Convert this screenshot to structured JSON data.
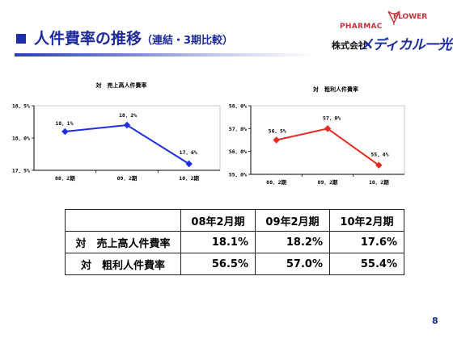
{
  "header": {
    "title_main": "人件費率の推移",
    "title_sub": "（連結・3期比較）"
  },
  "logo": {
    "pharmac": "PHARMAC",
    "flower": "FLOWER",
    "company_prefix": "株式会社",
    "brand": "メディカル一光"
  },
  "chart_data": [
    {
      "type": "line",
      "title": "対　売上高人件費率",
      "categories": [
        "08．2期",
        "09．2期",
        "10．2期"
      ],
      "values": [
        18.1,
        18.2,
        17.6
      ],
      "data_labels": [
        "18．1%",
        "18．2%",
        "17．6%"
      ],
      "ylim": [
        17.5,
        18.5
      ],
      "yticks": [
        "18．5%",
        "18．0%",
        "17．5%"
      ],
      "color": "#1f2fe0"
    },
    {
      "type": "line",
      "title": "対　粗利人件費率",
      "categories": [
        "08．2期",
        "09．2期",
        "10．2期"
      ],
      "values": [
        56.5,
        57.0,
        55.4
      ],
      "data_labels": [
        "56．5%",
        "57．0%",
        "55．4%"
      ],
      "ylim": [
        55.0,
        58.0
      ],
      "yticks": [
        "58．0%",
        "57．0%",
        "56．0%",
        "55．0%"
      ],
      "color": "#e82a1e"
    }
  ],
  "table": {
    "headers": [
      "08年2月期",
      "09年2月期",
      "10年2月期"
    ],
    "rows": [
      {
        "label": "対　売上高人件費率",
        "values": [
          "18.1%",
          "18.2%",
          "17.6%"
        ]
      },
      {
        "label": "対　粗利人件費率",
        "values": [
          "56.5%",
          "57.0%",
          "55.4%"
        ]
      }
    ]
  },
  "page_number": "8"
}
